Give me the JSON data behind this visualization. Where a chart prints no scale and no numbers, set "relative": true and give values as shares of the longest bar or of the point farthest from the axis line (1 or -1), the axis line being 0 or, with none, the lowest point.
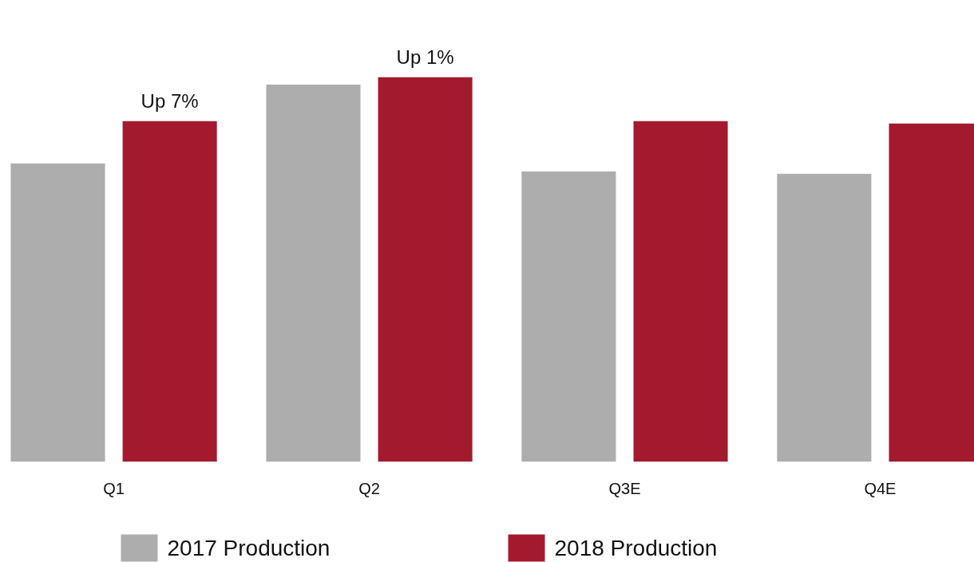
{
  "chart_data": {
    "type": "bar",
    "relative": true,
    "categories": [
      "Q1",
      "Q2",
      "Q3E",
      "Q4E"
    ],
    "series": [
      {
        "name": "2017 Production",
        "color": "#adadad",
        "values": [
          0.776,
          0.981,
          0.755,
          0.749
        ]
      },
      {
        "name": "2018 Production",
        "color": "#a31a2e",
        "values": [
          0.886,
          1,
          0.886,
          0.88
        ]
      }
    ],
    "annotations": [
      "Up 7%",
      "Up 1%"
    ],
    "legend": "bottom",
    "grid": false
  }
}
